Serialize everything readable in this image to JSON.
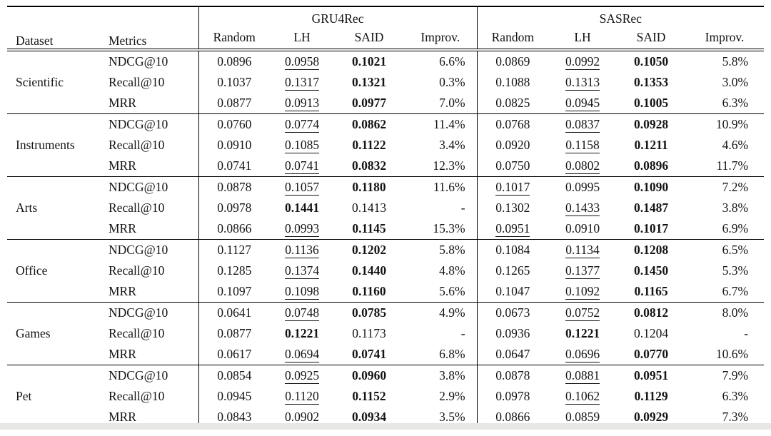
{
  "colors": {
    "text": "#141414",
    "rule": "#000000",
    "background": "#ffffff"
  },
  "table": {
    "columns": {
      "dataset_label": "Dataset",
      "metrics_label": "Metrics",
      "groups": [
        {
          "label": "GRU4Rec",
          "subcolumns": [
            "Random",
            "LH",
            "SAID",
            "Improv."
          ]
        },
        {
          "label": "SASRec",
          "subcolumns": [
            "Random",
            "LH",
            "SAID",
            "Improv."
          ]
        }
      ]
    },
    "body": [
      {
        "dataset": "Scientific",
        "rows": [
          {
            "metric": "NDCG@10",
            "cells": [
              {
                "v": "0.0896",
                "s": "p"
              },
              {
                "v": "0.0958",
                "s": "u"
              },
              {
                "v": "0.1021",
                "s": "b"
              },
              {
                "v": "6.6%",
                "s": "p"
              },
              {
                "v": "0.0869",
                "s": "p"
              },
              {
                "v": "0.0992",
                "s": "u"
              },
              {
                "v": "0.1050",
                "s": "b"
              },
              {
                "v": "5.8%",
                "s": "p"
              }
            ]
          },
          {
            "metric": "Recall@10",
            "cells": [
              {
                "v": "0.1037",
                "s": "p"
              },
              {
                "v": "0.1317",
                "s": "u"
              },
              {
                "v": "0.1321",
                "s": "b"
              },
              {
                "v": "0.3%",
                "s": "p"
              },
              {
                "v": "0.1088",
                "s": "p"
              },
              {
                "v": "0.1313",
                "s": "u"
              },
              {
                "v": "0.1353",
                "s": "b"
              },
              {
                "v": "3.0%",
                "s": "p"
              }
            ]
          },
          {
            "metric": "MRR",
            "cells": [
              {
                "v": "0.0877",
                "s": "p"
              },
              {
                "v": "0.0913",
                "s": "u"
              },
              {
                "v": "0.0977",
                "s": "b"
              },
              {
                "v": "7.0%",
                "s": "p"
              },
              {
                "v": "0.0825",
                "s": "p"
              },
              {
                "v": "0.0945",
                "s": "u"
              },
              {
                "v": "0.1005",
                "s": "b"
              },
              {
                "v": "6.3%",
                "s": "p"
              }
            ]
          }
        ]
      },
      {
        "dataset": "Instruments",
        "rows": [
          {
            "metric": "NDCG@10",
            "cells": [
              {
                "v": "0.0760",
                "s": "p"
              },
              {
                "v": "0.0774",
                "s": "u"
              },
              {
                "v": "0.0862",
                "s": "b"
              },
              {
                "v": "11.4%",
                "s": "p"
              },
              {
                "v": "0.0768",
                "s": "p"
              },
              {
                "v": "0.0837",
                "s": "u"
              },
              {
                "v": "0.0928",
                "s": "b"
              },
              {
                "v": "10.9%",
                "s": "p"
              }
            ]
          },
          {
            "metric": "Recall@10",
            "cells": [
              {
                "v": "0.0910",
                "s": "p"
              },
              {
                "v": "0.1085",
                "s": "u"
              },
              {
                "v": "0.1122",
                "s": "b"
              },
              {
                "v": "3.4%",
                "s": "p"
              },
              {
                "v": "0.0920",
                "s": "p"
              },
              {
                "v": "0.1158",
                "s": "u"
              },
              {
                "v": "0.1211",
                "s": "b"
              },
              {
                "v": "4.6%",
                "s": "p"
              }
            ]
          },
          {
            "metric": "MRR",
            "cells": [
              {
                "v": "0.0741",
                "s": "p"
              },
              {
                "v": "0.0741",
                "s": "u"
              },
              {
                "v": "0.0832",
                "s": "b"
              },
              {
                "v": "12.3%",
                "s": "p"
              },
              {
                "v": "0.0750",
                "s": "p"
              },
              {
                "v": "0.0802",
                "s": "u"
              },
              {
                "v": "0.0896",
                "s": "b"
              },
              {
                "v": "11.7%",
                "s": "p"
              }
            ]
          }
        ]
      },
      {
        "dataset": "Arts",
        "rows": [
          {
            "metric": "NDCG@10",
            "cells": [
              {
                "v": "0.0878",
                "s": "p"
              },
              {
                "v": "0.1057",
                "s": "u"
              },
              {
                "v": "0.1180",
                "s": "b"
              },
              {
                "v": "11.6%",
                "s": "p"
              },
              {
                "v": "0.1017",
                "s": "u"
              },
              {
                "v": "0.0995",
                "s": "p"
              },
              {
                "v": "0.1090",
                "s": "b"
              },
              {
                "v": "7.2%",
                "s": "p"
              }
            ]
          },
          {
            "metric": "Recall@10",
            "cells": [
              {
                "v": "0.0978",
                "s": "p"
              },
              {
                "v": "0.1441",
                "s": "b"
              },
              {
                "v": "0.1413",
                "s": "p"
              },
              {
                "v": "-",
                "s": "p"
              },
              {
                "v": "0.1302",
                "s": "p"
              },
              {
                "v": "0.1433",
                "s": "u"
              },
              {
                "v": "0.1487",
                "s": "b"
              },
              {
                "v": "3.8%",
                "s": "p"
              }
            ]
          },
          {
            "metric": "MRR",
            "cells": [
              {
                "v": "0.0866",
                "s": "p"
              },
              {
                "v": "0.0993",
                "s": "u"
              },
              {
                "v": "0.1145",
                "s": "b"
              },
              {
                "v": "15.3%",
                "s": "p"
              },
              {
                "v": "0.0951",
                "s": "u"
              },
              {
                "v": "0.0910",
                "s": "p"
              },
              {
                "v": "0.1017",
                "s": "b"
              },
              {
                "v": "6.9%",
                "s": "p"
              }
            ]
          }
        ]
      },
      {
        "dataset": "Office",
        "rows": [
          {
            "metric": "NDCG@10",
            "cells": [
              {
                "v": "0.1127",
                "s": "p"
              },
              {
                "v": "0.1136",
                "s": "u"
              },
              {
                "v": "0.1202",
                "s": "b"
              },
              {
                "v": "5.8%",
                "s": "p"
              },
              {
                "v": "0.1084",
                "s": "p"
              },
              {
                "v": "0.1134",
                "s": "u"
              },
              {
                "v": "0.1208",
                "s": "b"
              },
              {
                "v": "6.5%",
                "s": "p"
              }
            ]
          },
          {
            "metric": "Recall@10",
            "cells": [
              {
                "v": "0.1285",
                "s": "p"
              },
              {
                "v": "0.1374",
                "s": "u"
              },
              {
                "v": "0.1440",
                "s": "b"
              },
              {
                "v": "4.8%",
                "s": "p"
              },
              {
                "v": "0.1265",
                "s": "p"
              },
              {
                "v": "0.1377",
                "s": "u"
              },
              {
                "v": "0.1450",
                "s": "b"
              },
              {
                "v": "5.3%",
                "s": "p"
              }
            ]
          },
          {
            "metric": "MRR",
            "cells": [
              {
                "v": "0.1097",
                "s": "p"
              },
              {
                "v": "0.1098",
                "s": "u"
              },
              {
                "v": "0.1160",
                "s": "b"
              },
              {
                "v": "5.6%",
                "s": "p"
              },
              {
                "v": "0.1047",
                "s": "p"
              },
              {
                "v": "0.1092",
                "s": "u"
              },
              {
                "v": "0.1165",
                "s": "b"
              },
              {
                "v": "6.7%",
                "s": "p"
              }
            ]
          }
        ]
      },
      {
        "dataset": "Games",
        "rows": [
          {
            "metric": "NDCG@10",
            "cells": [
              {
                "v": "0.0641",
                "s": "p"
              },
              {
                "v": "0.0748",
                "s": "u"
              },
              {
                "v": "0.0785",
                "s": "b"
              },
              {
                "v": "4.9%",
                "s": "p"
              },
              {
                "v": "0.0673",
                "s": "p"
              },
              {
                "v": "0.0752",
                "s": "u"
              },
              {
                "v": "0.0812",
                "s": "b"
              },
              {
                "v": "8.0%",
                "s": "p"
              }
            ]
          },
          {
            "metric": "Recall@10",
            "cells": [
              {
                "v": "0.0877",
                "s": "p"
              },
              {
                "v": "0.1221",
                "s": "b"
              },
              {
                "v": "0.1173",
                "s": "p"
              },
              {
                "v": "-",
                "s": "p"
              },
              {
                "v": "0.0936",
                "s": "p"
              },
              {
                "v": "0.1221",
                "s": "b"
              },
              {
                "v": "0.1204",
                "s": "p"
              },
              {
                "v": "-",
                "s": "p"
              }
            ]
          },
          {
            "metric": "MRR",
            "cells": [
              {
                "v": "0.0617",
                "s": "p"
              },
              {
                "v": "0.0694",
                "s": "u"
              },
              {
                "v": "0.0741",
                "s": "b"
              },
              {
                "v": "6.8%",
                "s": "p"
              },
              {
                "v": "0.0647",
                "s": "p"
              },
              {
                "v": "0.0696",
                "s": "u"
              },
              {
                "v": "0.0770",
                "s": "b"
              },
              {
                "v": "10.6%",
                "s": "p"
              }
            ]
          }
        ]
      },
      {
        "dataset": "Pet",
        "rows": [
          {
            "metric": "NDCG@10",
            "cells": [
              {
                "v": "0.0854",
                "s": "p"
              },
              {
                "v": "0.0925",
                "s": "u"
              },
              {
                "v": "0.0960",
                "s": "b"
              },
              {
                "v": "3.8%",
                "s": "p"
              },
              {
                "v": "0.0878",
                "s": "p"
              },
              {
                "v": "0.0881",
                "s": "u"
              },
              {
                "v": "0.0951",
                "s": "b"
              },
              {
                "v": "7.9%",
                "s": "p"
              }
            ]
          },
          {
            "metric": "Recall@10",
            "cells": [
              {
                "v": "0.0945",
                "s": "p"
              },
              {
                "v": "0.1120",
                "s": "u"
              },
              {
                "v": "0.1152",
                "s": "b"
              },
              {
                "v": "2.9%",
                "s": "p"
              },
              {
                "v": "0.0978",
                "s": "p"
              },
              {
                "v": "0.1062",
                "s": "u"
              },
              {
                "v": "0.1129",
                "s": "b"
              },
              {
                "v": "6.3%",
                "s": "p"
              }
            ]
          },
          {
            "metric": "MRR",
            "cells": [
              {
                "v": "0.0843",
                "s": "p"
              },
              {
                "v": "0.0902",
                "s": "u"
              },
              {
                "v": "0.0934",
                "s": "b"
              },
              {
                "v": "3.5%",
                "s": "p"
              },
              {
                "v": "0.0866",
                "s": "u"
              },
              {
                "v": "0.0859",
                "s": "p"
              },
              {
                "v": "0.0929",
                "s": "b"
              },
              {
                "v": "7.3%",
                "s": "p"
              }
            ]
          }
        ]
      }
    ]
  }
}
